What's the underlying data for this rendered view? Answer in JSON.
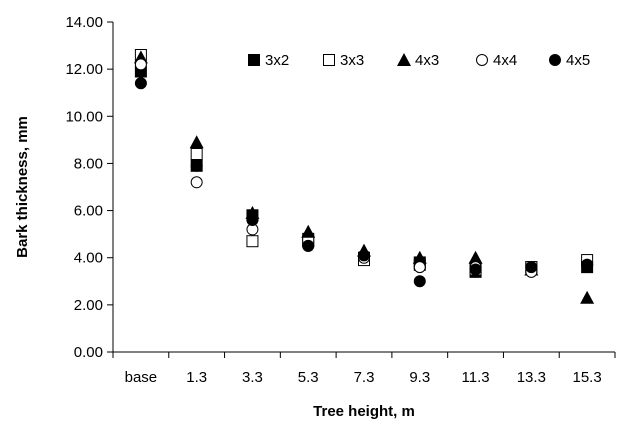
{
  "chart_data": {
    "type": "scatter",
    "xlabel": "Tree height, m",
    "ylabel": "Bark thickness, mm",
    "categories": [
      "base",
      "1.3",
      "3.3",
      "5.3",
      "7.3",
      "9.3",
      "11.3",
      "13.3",
      "15.3"
    ],
    "y_ticks": [
      "0.00",
      "2.00",
      "4.00",
      "6.00",
      "8.00",
      "10.00",
      "12.00",
      "14.00"
    ],
    "ylim": [
      0,
      14
    ],
    "grid": false,
    "legend_position": "top-right",
    "series": [
      {
        "name": "3x2",
        "marker": "filled-square",
        "values": [
          11.9,
          7.9,
          5.8,
          4.8,
          4.0,
          3.8,
          3.4,
          3.6,
          3.6
        ]
      },
      {
        "name": "3x3",
        "marker": "open-square",
        "values": [
          12.6,
          8.4,
          4.7,
          4.7,
          3.9,
          3.7,
          3.5,
          3.6,
          3.9
        ]
      },
      {
        "name": "4x3",
        "marker": "filled-triangle",
        "values": [
          12.5,
          8.9,
          5.9,
          5.1,
          4.3,
          4.0,
          4.0,
          3.5,
          2.3
        ]
      },
      {
        "name": "4x4",
        "marker": "open-circle",
        "values": [
          12.2,
          7.2,
          5.2,
          4.5,
          4.0,
          3.6,
          3.6,
          3.4,
          3.7
        ]
      },
      {
        "name": "4x5",
        "marker": "filled-circle",
        "values": [
          11.4,
          7.9,
          5.6,
          4.5,
          4.1,
          3.0,
          3.5,
          3.6,
          3.7
        ]
      }
    ]
  }
}
